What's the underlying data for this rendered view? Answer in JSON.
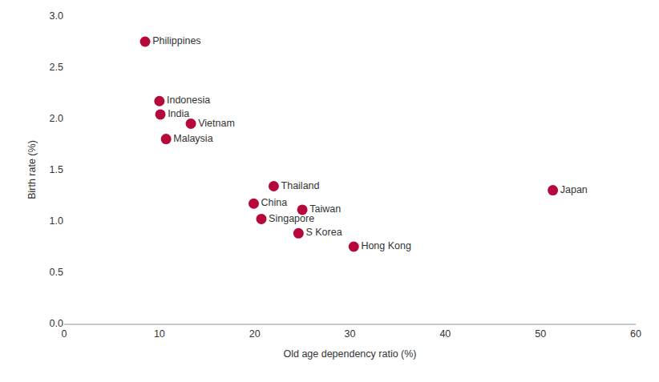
{
  "chart_data": {
    "type": "scatter",
    "x_label": "Old age dependency ratio (%)",
    "y_label": "Birth rate (%)",
    "labels": [
      "Philippines",
      "Indonesia",
      "India",
      "Vietnam",
      "Malaysia",
      "Thailand",
      "China",
      "Taiwan",
      "Singapore",
      "S Korea",
      "Hong Kong",
      "Japan"
    ],
    "x": [
      8.5,
      10.0,
      10.1,
      13.3,
      10.7,
      22.0,
      19.9,
      25.0,
      20.7,
      24.6,
      30.4,
      51.3
    ],
    "values": [
      2.75,
      2.17,
      2.04,
      1.95,
      1.8,
      1.34,
      1.17,
      1.11,
      1.02,
      0.88,
      0.75,
      1.3
    ],
    "color": "#b5093c",
    "marker": "circle",
    "xlim": [
      0,
      60
    ],
    "xticks": [
      0,
      10,
      20,
      30,
      40,
      50,
      60
    ],
    "ylim": [
      0,
      3.0
    ],
    "yticks": [
      {
        "value": 0,
        "label": "0.0"
      },
      0.5,
      {
        "value": 1,
        "label": "1.0"
      },
      1.5,
      {
        "value": 2,
        "label": "2.0"
      },
      2.5,
      {
        "value": 3,
        "label": "3.0"
      }
    ],
    "grid": false
  }
}
